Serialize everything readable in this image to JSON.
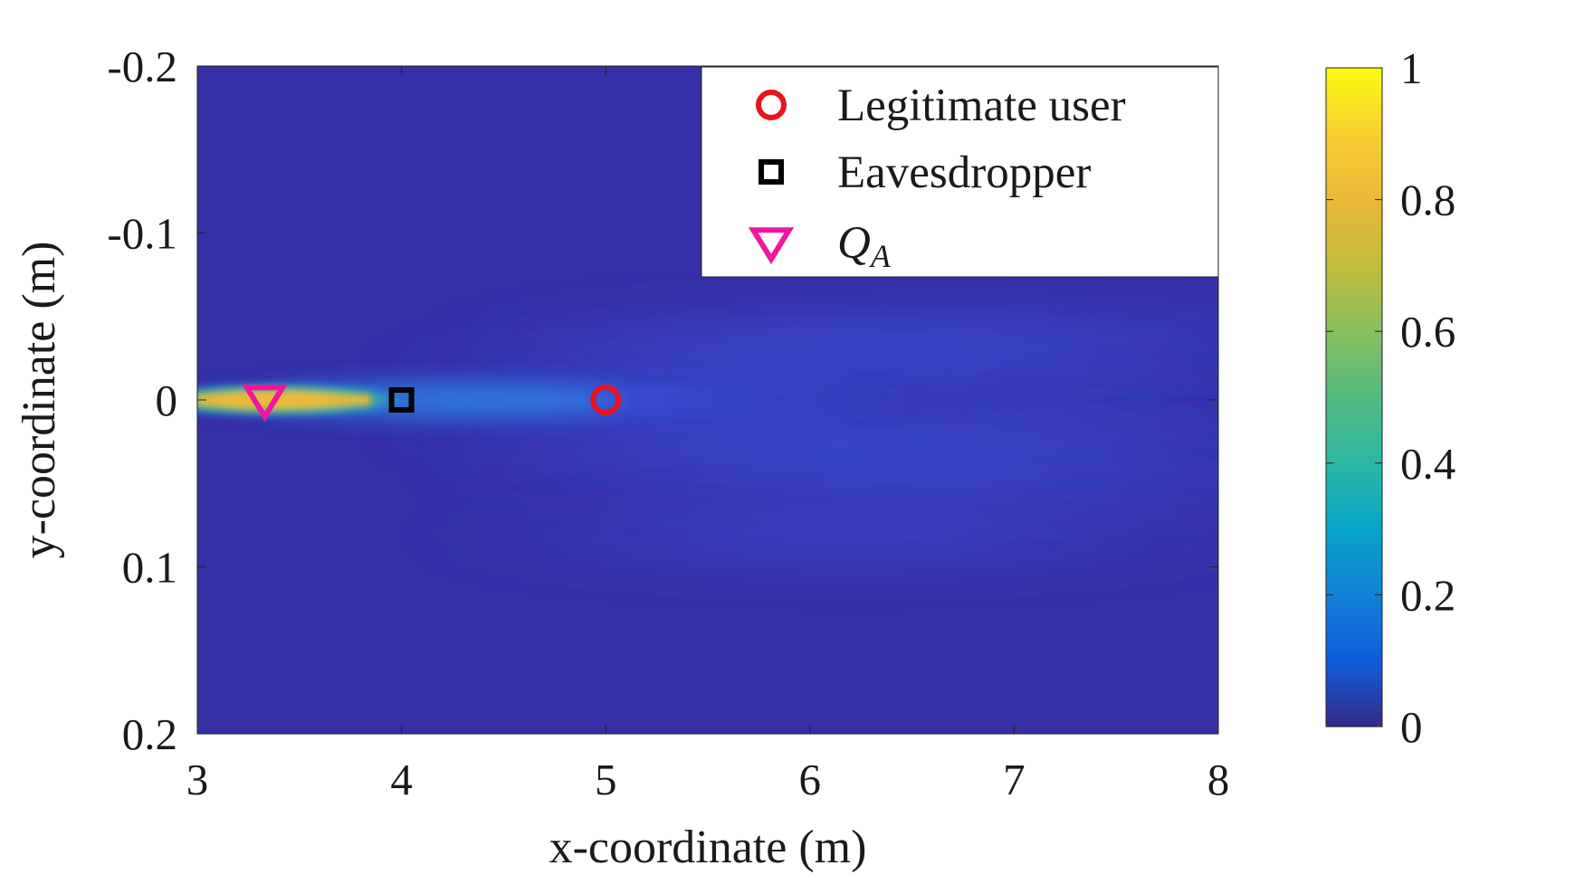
{
  "chart_data": {
    "type": "heatmap",
    "title": "",
    "xlabel": "x-coordinate (m)",
    "ylabel": "y-coordinate (m)",
    "xlim": [
      3,
      8
    ],
    "ylim": [
      -0.2,
      0.2
    ],
    "y_axis_reversed": true,
    "x_ticks": [
      3,
      4,
      5,
      6,
      7,
      8
    ],
    "x_tick_labels": [
      "3",
      "4",
      "5",
      "6",
      "7",
      "8"
    ],
    "y_ticks": [
      -0.2,
      -0.1,
      0,
      0.1,
      0.2
    ],
    "y_tick_labels": [
      "-0.2",
      "-0.1",
      "0",
      "0.1",
      "0.2"
    ],
    "colorbar": {
      "range": [
        0,
        1
      ],
      "ticks": [
        0,
        0.2,
        0.4,
        0.6,
        0.8,
        1
      ],
      "tick_labels": [
        "0",
        "0.2",
        "0.4",
        "0.6",
        "0.8",
        "1"
      ],
      "colormap": "parula"
    },
    "field": {
      "description_of_values": "normalized intensity, peak ≈1 along y=0 for x between 3 and 3.9, decaying beyond x≈4 with a faint diverging beam",
      "peak_value": 1,
      "peak_x_range": [
        3,
        3.9
      ],
      "beam_center_y": 0,
      "background_value": 0.03
    },
    "legend": {
      "placement": "top-right",
      "entries": [
        {
          "label": "Legitimate user",
          "marker": "circle",
          "color": "#e8141c"
        },
        {
          "label": "Eavesdropper",
          "marker": "square",
          "color": "#000000"
        },
        {
          "label_base": "Q",
          "label_sub": "A",
          "marker": "triangle-down",
          "color": "#f0169f"
        }
      ]
    },
    "points": [
      {
        "name": "Legitimate user",
        "x": 5,
        "y": 0
      },
      {
        "name": "Eavesdropper",
        "x": 4,
        "y": 0
      },
      {
        "name": "Q_A",
        "x": 3.33,
        "y": 0
      }
    ]
  }
}
